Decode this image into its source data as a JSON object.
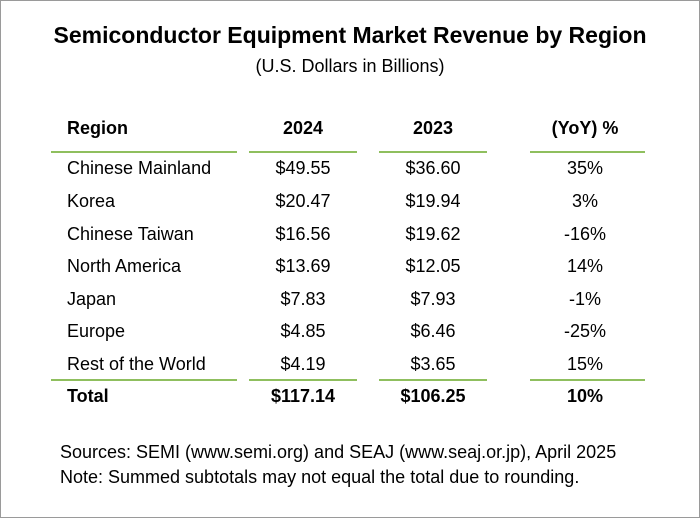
{
  "title": "Semiconductor Equipment Market Revenue by Region",
  "subtitle": "(U.S. Dollars in Billions)",
  "table": {
    "headers": [
      "Region",
      "2024",
      "2023",
      "(YoY) %"
    ],
    "rows": [
      {
        "region": "Chinese Mainland",
        "y2024": "$49.55",
        "y2023": "$36.60",
        "yoy": "35%"
      },
      {
        "region": "Korea",
        "y2024": "$20.47",
        "y2023": "$19.94",
        "yoy": "3%"
      },
      {
        "region": "Chinese Taiwan",
        "y2024": "$16.56",
        "y2023": "$19.62",
        "yoy": "-16%"
      },
      {
        "region": "North America",
        "y2024": "$13.69",
        "y2023": "$12.05",
        "yoy": "14%"
      },
      {
        "region": "Japan",
        "y2024": "$7.83",
        "y2023": "$7.93",
        "yoy": "-1%"
      },
      {
        "region": "Europe",
        "y2024": "$4.85",
        "y2023": "$6.46",
        "yoy": "-25%"
      },
      {
        "region": "Rest of the World",
        "y2024": "$4.19",
        "y2023": "$3.65",
        "yoy": "15%"
      }
    ],
    "total": {
      "region": "Total",
      "y2024": "$117.14",
      "y2023": "$106.25",
      "yoy": "10%"
    }
  },
  "footer": {
    "sources": "Sources: SEMI (www.semi.org) and SEAJ (www.seaj.or.jp), April 2025",
    "note": "Note: Summed subtotals may not equal the total due to rounding."
  },
  "colors": {
    "rule": "#8fbf5e",
    "border": "#9a9a9a"
  }
}
